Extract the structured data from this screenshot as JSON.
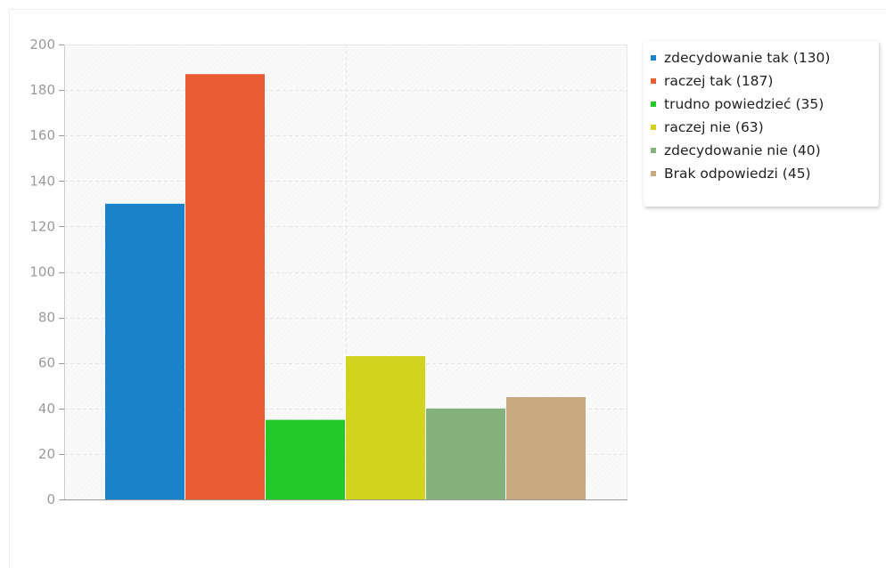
{
  "chart_data": {
    "type": "bar",
    "title": "",
    "xlabel": "",
    "ylabel": "",
    "ylim": [
      0,
      200
    ],
    "yticks": [
      0,
      20,
      40,
      60,
      80,
      100,
      120,
      140,
      160,
      180,
      200
    ],
    "grid": true,
    "legend_position": "top-right",
    "categories": [
      "zdecydowanie tak",
      "raczej tak",
      "trudno powiedzieć",
      "raczej nie",
      "zdecydowanie nie",
      "Brak odpowiedzi"
    ],
    "values": [
      130,
      187,
      35,
      63,
      40,
      45
    ],
    "colors": [
      "#1b81c9",
      "#e75c34",
      "#22c928",
      "#d2d31e",
      "#85b17c",
      "#c8a97f"
    ],
    "legend": [
      "zdecydowanie tak (130)",
      "raczej tak (187)",
      "trudno powiedzieć (35)",
      "raczej nie (63)",
      "zdecydowanie nie (40)",
      "Brak odpowiedzi (45)"
    ]
  }
}
